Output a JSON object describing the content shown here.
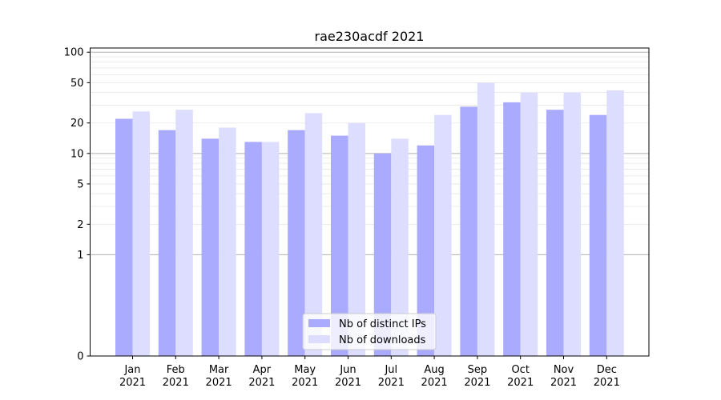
{
  "chart_data": {
    "type": "bar",
    "title": "rae230acdf 2021",
    "xlabel": "",
    "ylabel": "",
    "y_scale": "symlog",
    "ylim": [
      0,
      110
    ],
    "y_ticks": [
      0,
      1,
      2,
      5,
      10,
      20,
      50,
      100
    ],
    "y_tick_labels": [
      "0",
      "1",
      "2",
      "5",
      "10",
      "20",
      "50",
      "100"
    ],
    "grid": "horizontal lines at major and minor y ticks",
    "categories": [
      "Jan\n2021",
      "Feb\n2021",
      "Mar\n2021",
      "Apr\n2021",
      "May\n2021",
      "Jun\n2021",
      "Jul\n2021",
      "Aug\n2021",
      "Sep\n2021",
      "Oct\n2021",
      "Nov\n2021",
      "Dec\n2021"
    ],
    "series": [
      {
        "name": "Nb of distinct IPs",
        "color": "#aaaaff",
        "values": [
          22,
          17,
          14,
          13,
          17,
          15,
          10,
          12,
          29,
          32,
          27,
          24
        ]
      },
      {
        "name": "Nb of downloads",
        "color": "#ddddff",
        "values": [
          26,
          27,
          18,
          13,
          25,
          20,
          14,
          24,
          50,
          40,
          40,
          42
        ]
      }
    ],
    "legend_position": "bottom-center"
  }
}
